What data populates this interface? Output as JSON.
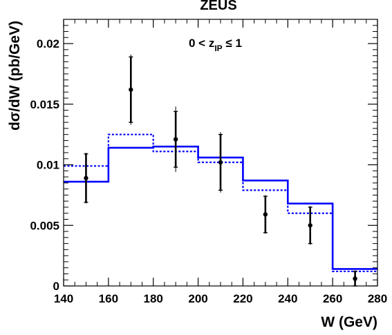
{
  "chart_data": {
    "type": "line",
    "title": "ZEUS",
    "annotation": {
      "main": "0 < z",
      "sub": "IP",
      "tail": " ≤ 1"
    },
    "xlabel": "W (GeV)",
    "ylabel": "dσ/dW (pb/GeV)",
    "xlim": [
      140,
      280
    ],
    "ylim": [
      0,
      0.022
    ],
    "x_ticks": [
      140,
      160,
      180,
      200,
      220,
      240,
      260,
      280
    ],
    "x_tick_labels": [
      "140",
      "160",
      "180",
      "200",
      "220",
      "240",
      "260",
      "280"
    ],
    "y_ticks": [
      0,
      0.005,
      0.01,
      0.015,
      0.02
    ],
    "y_tick_labels": [
      "0",
      "0.005",
      "0.01",
      "0.015",
      "0.02"
    ],
    "grid": false,
    "legend": "none",
    "data_points": {
      "x": [
        150,
        170,
        190,
        210,
        230,
        250,
        270
      ],
      "y": [
        0.0089,
        0.0162,
        0.0121,
        0.0102,
        0.0059,
        0.005,
        0.0006
      ],
      "err_stat": [
        0.002,
        0.0027,
        0.0023,
        0.0023,
        0.0015,
        0.0015,
        0.0006
      ],
      "err_tot": [
        0.0021,
        0.0029,
        0.0027,
        0.0025,
        0.0016,
        0.0016,
        0.0007
      ]
    },
    "series": [
      {
        "style": "solid",
        "color": "#0000ff",
        "bin_edges": [
          140,
          160,
          180,
          200,
          220,
          240,
          260,
          280
        ],
        "values": [
          0.0086,
          0.0114,
          0.0115,
          0.0106,
          0.0087,
          0.0068,
          0.0014
        ]
      },
      {
        "style": "dotted",
        "color": "#0000ff",
        "bin_edges": [
          140,
          160,
          180,
          200,
          220,
          240,
          260,
          280
        ],
        "values": [
          0.0099,
          0.0125,
          0.0111,
          0.0102,
          0.0079,
          0.006,
          0.0012
        ]
      }
    ]
  }
}
